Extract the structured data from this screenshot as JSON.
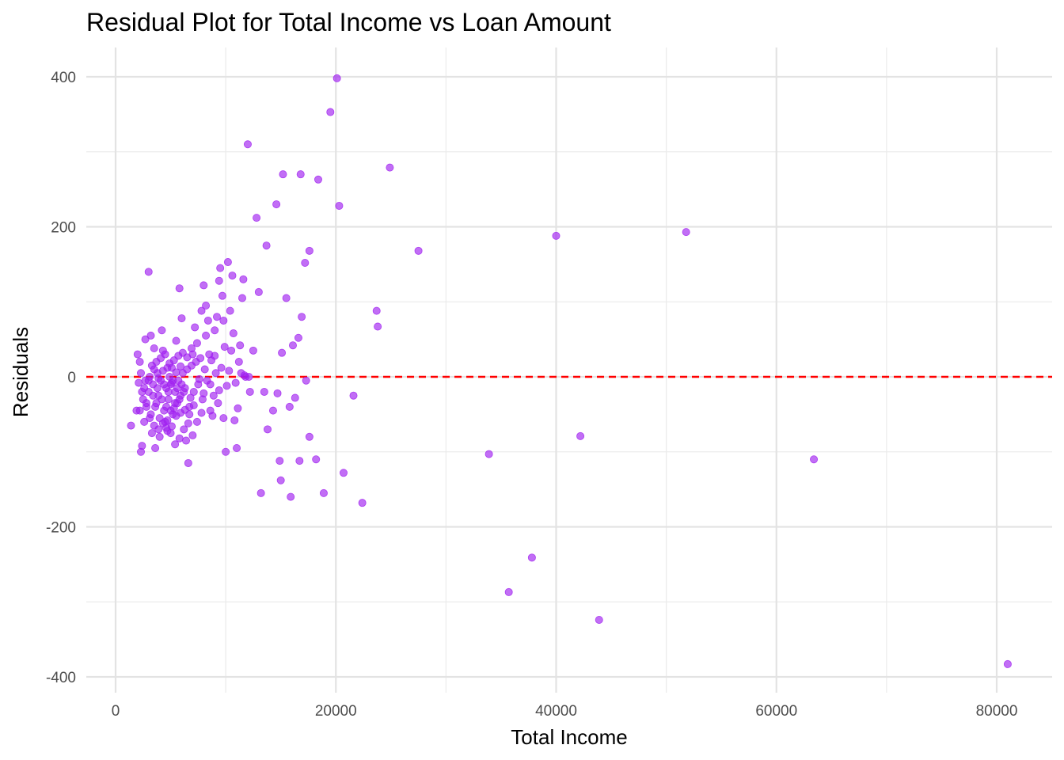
{
  "chart_data": {
    "type": "scatter",
    "title": "Residual Plot for Total Income vs Loan Amount",
    "xlabel": "Total Income",
    "ylabel": "Residuals",
    "xlim": [
      -2500,
      85000
    ],
    "ylim": [
      -420,
      440
    ],
    "x_ticks": [
      0,
      20000,
      40000,
      60000,
      80000
    ],
    "x_tick_labels": [
      "0",
      "20000",
      "40000",
      "60000",
      "80000"
    ],
    "y_ticks": [
      -400,
      -200,
      0,
      200,
      400
    ],
    "y_tick_labels": [
      "-400",
      "-200",
      "0",
      "200",
      "400"
    ],
    "grid": true,
    "legend": "none",
    "reference_line": {
      "y": 0,
      "style": "dashed",
      "color": "#ff0000"
    },
    "point_color": "#a020f0",
    "points": [
      [
        1400,
        -65
      ],
      [
        2000,
        30
      ],
      [
        1900,
        -45
      ],
      [
        2100,
        -8
      ],
      [
        2300,
        -100
      ],
      [
        2400,
        -92
      ],
      [
        2200,
        20
      ],
      [
        2700,
        50
      ],
      [
        3000,
        140
      ],
      [
        3200,
        55
      ],
      [
        3300,
        -75
      ],
      [
        3500,
        38
      ],
      [
        3600,
        -95
      ],
      [
        3800,
        5
      ],
      [
        4000,
        -80
      ],
      [
        4200,
        62
      ],
      [
        4300,
        35
      ],
      [
        4500,
        -60
      ],
      [
        4700,
        -72
      ],
      [
        4900,
        0
      ],
      [
        5100,
        12
      ],
      [
        5300,
        -42
      ],
      [
        5500,
        48
      ],
      [
        5800,
        118
      ],
      [
        6000,
        78
      ],
      [
        6200,
        -20
      ],
      [
        6400,
        -85
      ],
      [
        6600,
        -115
      ],
      [
        6800,
        -28
      ],
      [
        7000,
        30
      ],
      [
        7200,
        66
      ],
      [
        7400,
        45
      ],
      [
        7600,
        -3
      ],
      [
        7800,
        88
      ],
      [
        8000,
        122
      ],
      [
        8200,
        95
      ],
      [
        8400,
        75
      ],
      [
        8600,
        -10
      ],
      [
        8800,
        -52
      ],
      [
        9000,
        62
      ],
      [
        9200,
        80
      ],
      [
        9400,
        128
      ],
      [
        9500,
        145
      ],
      [
        9700,
        108
      ],
      [
        9800,
        -55
      ],
      [
        10000,
        -100
      ],
      [
        10200,
        153
      ],
      [
        10400,
        88
      ],
      [
        10600,
        135
      ],
      [
        10800,
        -58
      ],
      [
        11000,
        -95
      ],
      [
        11100,
        -42
      ],
      [
        11200,
        20
      ],
      [
        11400,
        5
      ],
      [
        11500,
        105
      ],
      [
        11600,
        130
      ],
      [
        11800,
        0
      ],
      [
        12000,
        310
      ],
      [
        12200,
        -20
      ],
      [
        12500,
        35
      ],
      [
        12800,
        212
      ],
      [
        13000,
        113
      ],
      [
        13200,
        -155
      ],
      [
        13500,
        -20
      ],
      [
        13700,
        175
      ],
      [
        13800,
        -70
      ],
      [
        14300,
        -45
      ],
      [
        14600,
        230
      ],
      [
        14700,
        -22
      ],
      [
        14900,
        -112
      ],
      [
        15000,
        -138
      ],
      [
        15100,
        32
      ],
      [
        15200,
        270
      ],
      [
        15500,
        105
      ],
      [
        15800,
        -40
      ],
      [
        15900,
        -160
      ],
      [
        16100,
        42
      ],
      [
        16300,
        -28
      ],
      [
        16600,
        52
      ],
      [
        16700,
        -112
      ],
      [
        16800,
        270
      ],
      [
        16900,
        80
      ],
      [
        17200,
        152
      ],
      [
        17300,
        -5
      ],
      [
        17600,
        -80
      ],
      [
        17600,
        168
      ],
      [
        18200,
        -110
      ],
      [
        18400,
        263
      ],
      [
        18900,
        -155
      ],
      [
        19500,
        353
      ],
      [
        20100,
        398
      ],
      [
        20300,
        228
      ],
      [
        20700,
        -128
      ],
      [
        21600,
        -25
      ],
      [
        22400,
        -168
      ],
      [
        23700,
        88
      ],
      [
        23800,
        67
      ],
      [
        24900,
        279
      ],
      [
        27500,
        168
      ],
      [
        33900,
        -103
      ],
      [
        35700,
        -287
      ],
      [
        37800,
        -241
      ],
      [
        40000,
        188
      ],
      [
        42200,
        -79
      ],
      [
        43900,
        -324
      ],
      [
        51800,
        193
      ],
      [
        63400,
        -110
      ],
      [
        81000,
        -383
      ],
      [
        2500,
        -30
      ],
      [
        2600,
        -15
      ],
      [
        2800,
        -40
      ],
      [
        3000,
        -20
      ],
      [
        3100,
        -55
      ],
      [
        3400,
        -10
      ],
      [
        3700,
        -35
      ],
      [
        3900,
        -25
      ],
      [
        4100,
        -5
      ],
      [
        4400,
        -45
      ],
      [
        4600,
        -15
      ],
      [
        4800,
        -30
      ],
      [
        5000,
        -10
      ],
      [
        5200,
        -50
      ],
      [
        5400,
        -20
      ],
      [
        5600,
        -35
      ],
      [
        5700,
        -5
      ],
      [
        5900,
        -25
      ],
      [
        6100,
        5
      ],
      [
        6300,
        -15
      ],
      [
        6500,
        10
      ],
      [
        6700,
        -40
      ],
      [
        6900,
        15
      ],
      [
        7100,
        -20
      ],
      [
        7300,
        20
      ],
      [
        7500,
        -10
      ],
      [
        7700,
        25
      ],
      [
        7900,
        -30
      ],
      [
        8100,
        10
      ],
      [
        8300,
        -5
      ],
      [
        2200,
        -45
      ],
      [
        2400,
        -20
      ],
      [
        2600,
        -60
      ],
      [
        2800,
        -35
      ],
      [
        3000,
        -5
      ],
      [
        3200,
        -50
      ],
      [
        3400,
        -25
      ],
      [
        3600,
        -40
      ],
      [
        3800,
        -15
      ],
      [
        4000,
        -55
      ],
      [
        4200,
        -30
      ],
      [
        4400,
        -10
      ],
      [
        4600,
        -40
      ],
      [
        4800,
        -20
      ],
      [
        5000,
        -45
      ],
      [
        5200,
        -5
      ],
      [
        5400,
        -35
      ],
      [
        5600,
        -15
      ],
      [
        5800,
        -30
      ],
      [
        6000,
        -10
      ],
      [
        3300,
        15
      ],
      [
        3700,
        20
      ],
      [
        4100,
        25
      ],
      [
        4500,
        30
      ],
      [
        4900,
        18
      ],
      [
        5300,
        22
      ],
      [
        5700,
        28
      ],
      [
        6100,
        32
      ],
      [
        6500,
        26
      ],
      [
        6900,
        38
      ],
      [
        3500,
        -65
      ],
      [
        3900,
        -70
      ],
      [
        4300,
        -62
      ],
      [
        4700,
        -58
      ],
      [
        5100,
        -66
      ],
      [
        5500,
        -52
      ],
      [
        5900,
        -48
      ],
      [
        6300,
        -44
      ],
      [
        6700,
        -50
      ],
      [
        7100,
        -38
      ],
      [
        8500,
        30
      ],
      [
        8700,
        22
      ],
      [
        8900,
        -25
      ],
      [
        9100,
        5
      ],
      [
        9300,
        -35
      ],
      [
        9600,
        12
      ],
      [
        9900,
        40
      ],
      [
        10100,
        -12
      ],
      [
        10300,
        8
      ],
      [
        10500,
        35
      ],
      [
        10700,
        58
      ],
      [
        10900,
        -8
      ],
      [
        11300,
        42
      ],
      [
        11700,
        2
      ],
      [
        12100,
        0
      ],
      [
        8200,
        55
      ],
      [
        8600,
        -45
      ],
      [
        9000,
        28
      ],
      [
        9400,
        -18
      ],
      [
        9800,
        75
      ],
      [
        7400,
        -60
      ],
      [
        7800,
        -48
      ],
      [
        8000,
        -22
      ],
      [
        7000,
        -78
      ],
      [
        6600,
        -62
      ],
      [
        6200,
        -70
      ],
      [
        5800,
        -82
      ],
      [
        5400,
        -90
      ],
      [
        5000,
        -75
      ],
      [
        4600,
        -68
      ],
      [
        2300,
        5
      ],
      [
        2700,
        -5
      ],
      [
        3100,
        0
      ],
      [
        3500,
        10
      ],
      [
        3900,
        -2
      ],
      [
        4300,
        8
      ],
      [
        4700,
        12
      ],
      [
        5100,
        -8
      ],
      [
        5500,
        6
      ],
      [
        5900,
        14
      ]
    ]
  }
}
